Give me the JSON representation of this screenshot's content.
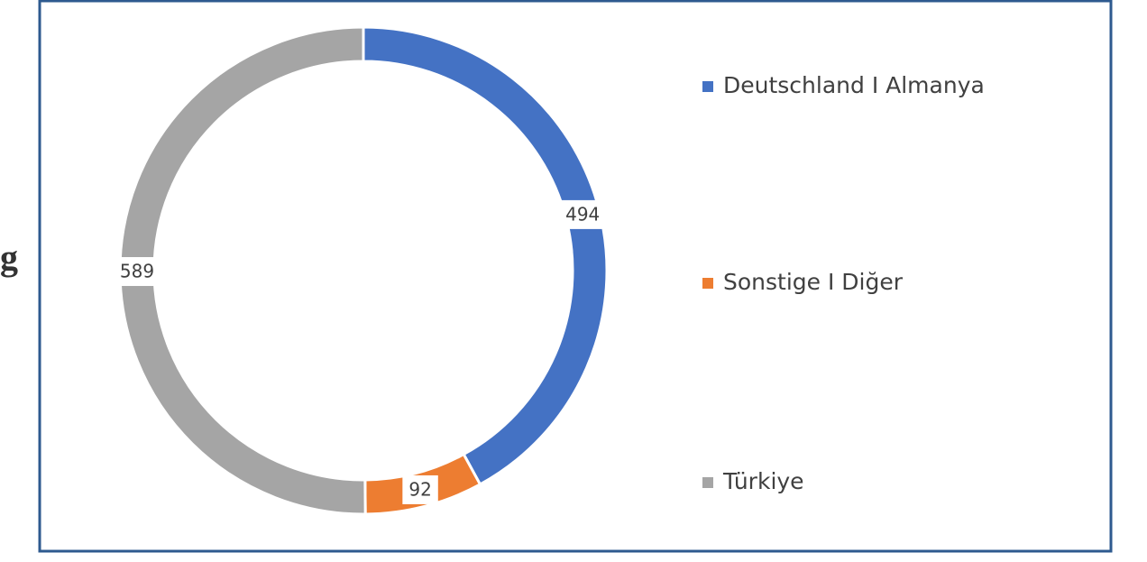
{
  "side_text": "g",
  "chart_data": {
    "type": "pie",
    "donut": true,
    "categories": [
      "Deutschland I Almanya",
      "Sonstige I Diğer",
      "Türkiye"
    ],
    "values": [
      494,
      92,
      589
    ],
    "colors": [
      "#4472c4",
      "#ed7d31",
      "#a5a5a5"
    ],
    "legend": "right"
  }
}
